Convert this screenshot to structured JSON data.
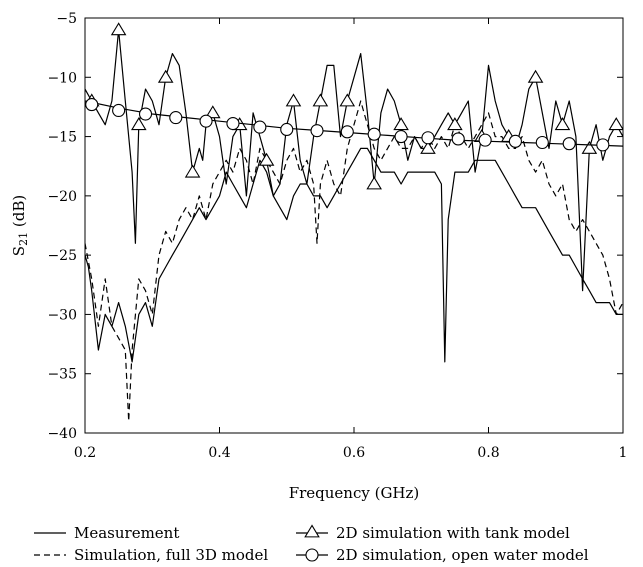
{
  "chart_data": {
    "type": "line",
    "title": "",
    "xlabel": "Frequency (GHz)",
    "ylabel_main": "S",
    "ylabel_sub": "21",
    "ylabel_unit": " (dB)",
    "xlim": [
      0.2,
      1.0
    ],
    "ylim": [
      -40,
      -5
    ],
    "xticks": [
      0.2,
      0.4,
      0.6,
      0.8,
      1.0
    ],
    "xtick_labels": [
      "0.2",
      "0.4",
      "0.6",
      "0.8",
      "1"
    ],
    "yticks": [
      -40,
      -35,
      -30,
      -25,
      -20,
      -15,
      -10,
      -5
    ],
    "ytick_labels": [
      "−40",
      "−35",
      "−30",
      "−25",
      "−20",
      "−15",
      "−10",
      "−5"
    ],
    "grid": false,
    "legend_position": "bottom",
    "series": [
      {
        "name": "Measurement",
        "style": "solid",
        "marker": "none",
        "x": [
          0.2,
          0.205,
          0.21,
          0.22,
          0.23,
          0.24,
          0.25,
          0.26,
          0.27,
          0.28,
          0.29,
          0.3,
          0.31,
          0.32,
          0.33,
          0.34,
          0.35,
          0.36,
          0.37,
          0.38,
          0.39,
          0.4,
          0.41,
          0.42,
          0.43,
          0.44,
          0.45,
          0.46,
          0.47,
          0.48,
          0.49,
          0.5,
          0.51,
          0.52,
          0.53,
          0.54,
          0.55,
          0.56,
          0.57,
          0.58,
          0.59,
          0.6,
          0.61,
          0.62,
          0.63,
          0.64,
          0.65,
          0.66,
          0.67,
          0.68,
          0.69,
          0.7,
          0.71,
          0.72,
          0.73,
          0.735,
          0.74,
          0.75,
          0.76,
          0.77,
          0.78,
          0.79,
          0.8,
          0.81,
          0.82,
          0.83,
          0.84,
          0.85,
          0.86,
          0.87,
          0.88,
          0.89,
          0.9,
          0.91,
          0.92,
          0.93,
          0.94,
          0.95,
          0.96,
          0.97,
          0.98,
          0.99,
          1.0
        ],
        "y": [
          -25,
          -26,
          -28,
          -33,
          -30,
          -31,
          -29,
          -31,
          -34,
          -30,
          -29,
          -31,
          -27,
          -26,
          -25,
          -24,
          -23,
          -22,
          -21,
          -22,
          -21,
          -20,
          -18,
          -19,
          -20,
          -21,
          -19,
          -17,
          -18,
          -20,
          -21,
          -22,
          -20,
          -19,
          -19,
          -20,
          -20,
          -21,
          -20,
          -19,
          -18,
          -17,
          -16,
          -16,
          -17,
          -18,
          -18,
          -18,
          -19,
          -18,
          -18,
          -18,
          -18,
          -18,
          -19,
          -34,
          -22,
          -18,
          -18,
          -18,
          -17,
          -17,
          -17,
          -17,
          -18,
          -19,
          -20,
          -21,
          -21,
          -21,
          -22,
          -23,
          -24,
          -25,
          -25,
          -26,
          -27,
          -28,
          -29,
          -29,
          -29,
          -30,
          -30
        ]
      },
      {
        "name": "Simulation, full 3D model",
        "style": "dashed",
        "marker": "none",
        "x": [
          0.2,
          0.21,
          0.22,
          0.23,
          0.24,
          0.25,
          0.26,
          0.265,
          0.27,
          0.28,
          0.29,
          0.3,
          0.31,
          0.32,
          0.33,
          0.34,
          0.35,
          0.36,
          0.37,
          0.38,
          0.39,
          0.4,
          0.41,
          0.42,
          0.43,
          0.44,
          0.45,
          0.46,
          0.47,
          0.48,
          0.49,
          0.5,
          0.51,
          0.52,
          0.53,
          0.54,
          0.545,
          0.55,
          0.56,
          0.57,
          0.58,
          0.59,
          0.6,
          0.61,
          0.62,
          0.63,
          0.64,
          0.65,
          0.66,
          0.67,
          0.68,
          0.69,
          0.7,
          0.71,
          0.72,
          0.73,
          0.74,
          0.75,
          0.76,
          0.77,
          0.78,
          0.79,
          0.8,
          0.81,
          0.82,
          0.83,
          0.84,
          0.85,
          0.86,
          0.87,
          0.88,
          0.89,
          0.9,
          0.91,
          0.92,
          0.93,
          0.94,
          0.95,
          0.96,
          0.97,
          0.98,
          0.99,
          1.0
        ],
        "y": [
          -24,
          -27,
          -31,
          -27,
          -31,
          -32,
          -33,
          -39,
          -33,
          -27,
          -28,
          -30,
          -25,
          -23,
          -24,
          -22,
          -21,
          -22,
          -20,
          -22,
          -19,
          -18,
          -17,
          -18,
          -16,
          -17,
          -19,
          -16,
          -17,
          -18,
          -19,
          -17,
          -16,
          -18,
          -17,
          -19,
          -24,
          -19,
          -17,
          -19,
          -20,
          -16,
          -14,
          -12,
          -14,
          -16,
          -17,
          -16,
          -15,
          -16,
          -16,
          -15,
          -16,
          -15,
          -16,
          -15,
          -16,
          -14,
          -15,
          -16,
          -15,
          -14,
          -13,
          -15,
          -15,
          -16,
          -16,
          -15,
          -17,
          -18,
          -17,
          -19,
          -20,
          -19,
          -22,
          -23,
          -22,
          -23,
          -24,
          -25,
          -27,
          -30,
          -29
        ]
      },
      {
        "name": "2D simulation with tank model",
        "style": "solid",
        "marker": "triangle",
        "x": [
          0.2,
          0.21,
          0.22,
          0.23,
          0.24,
          0.25,
          0.26,
          0.27,
          0.275,
          0.28,
          0.29,
          0.3,
          0.31,
          0.32,
          0.33,
          0.34,
          0.35,
          0.36,
          0.37,
          0.375,
          0.38,
          0.39,
          0.4,
          0.41,
          0.42,
          0.43,
          0.44,
          0.45,
          0.46,
          0.47,
          0.48,
          0.49,
          0.5,
          0.51,
          0.52,
          0.53,
          0.54,
          0.55,
          0.56,
          0.57,
          0.58,
          0.59,
          0.6,
          0.61,
          0.62,
          0.63,
          0.64,
          0.65,
          0.66,
          0.67,
          0.68,
          0.69,
          0.7,
          0.71,
          0.72,
          0.73,
          0.74,
          0.75,
          0.76,
          0.77,
          0.78,
          0.79,
          0.8,
          0.81,
          0.82,
          0.83,
          0.84,
          0.85,
          0.86,
          0.87,
          0.88,
          0.89,
          0.9,
          0.91,
          0.92,
          0.93,
          0.94,
          0.95,
          0.96,
          0.97,
          0.98,
          0.99,
          1.0
        ],
        "y": [
          -11,
          -12,
          -13,
          -14,
          -12,
          -6,
          -12,
          -18,
          -24,
          -14,
          -11,
          -12,
          -14,
          -10,
          -8,
          -9,
          -13,
          -18,
          -16,
          -17,
          -14,
          -13,
          -15,
          -19,
          -15,
          -14,
          -20,
          -13,
          -15,
          -17,
          -20,
          -19,
          -14,
          -12,
          -17,
          -19,
          -15,
          -12,
          -9,
          -9,
          -15,
          -12,
          -10,
          -8,
          -13,
          -19,
          -13,
          -11,
          -12,
          -14,
          -17,
          -15,
          -16,
          -16,
          -15,
          -14,
          -13,
          -14,
          -13,
          -12,
          -18,
          -15,
          -9,
          -12,
          -14,
          -15,
          -16,
          -14,
          -11,
          -10,
          -13,
          -16,
          -12,
          -14,
          -12,
          -15,
          -28,
          -16,
          -14,
          -17,
          -15,
          -14,
          -15
        ]
      },
      {
        "name": "2D simulation, open water model",
        "style": "solid",
        "marker": "circle",
        "x": [
          0.2,
          0.25,
          0.3,
          0.35,
          0.4,
          0.45,
          0.5,
          0.55,
          0.6,
          0.65,
          0.7,
          0.75,
          0.8,
          0.85,
          0.9,
          0.95,
          1.0
        ],
        "y": [
          -12.0,
          -12.6,
          -13.1,
          -13.4,
          -13.7,
          -14.0,
          -14.3,
          -14.5,
          -14.7,
          -14.9,
          -15.1,
          -15.3,
          -15.4,
          -15.5,
          -15.6,
          -15.7,
          -15.8
        ],
        "marker_x": [
          0.21,
          0.25,
          0.29,
          0.335,
          0.38,
          0.42,
          0.46,
          0.5,
          0.545,
          0.59,
          0.63,
          0.67,
          0.71,
          0.755,
          0.795,
          0.84,
          0.88,
          0.92,
          0.97
        ],
        "marker_y": [
          -12.3,
          -12.8,
          -13.1,
          -13.4,
          -13.7,
          -13.9,
          -14.2,
          -14.4,
          -14.5,
          -14.6,
          -14.8,
          -15.0,
          -15.1,
          -15.2,
          -15.3,
          -15.4,
          -15.5,
          -15.6,
          -15.7
        ]
      }
    ]
  }
}
